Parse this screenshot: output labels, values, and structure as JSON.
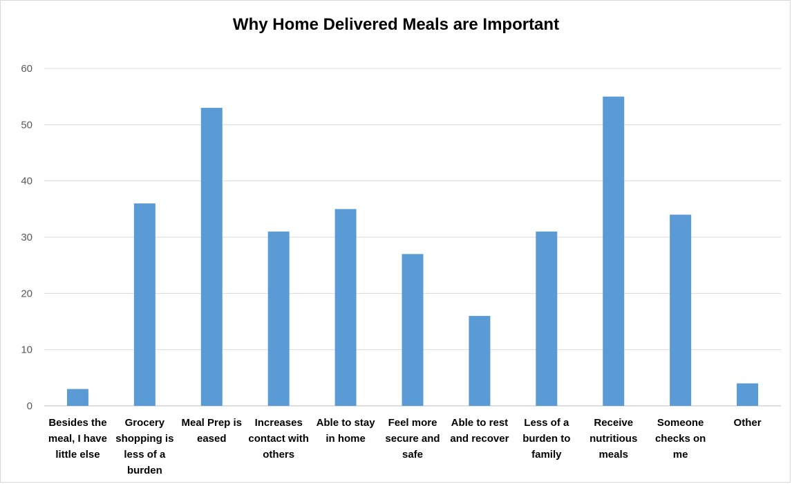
{
  "chart_data": {
    "type": "bar",
    "title": "Why Home Delivered Meals are Important",
    "xlabel": "",
    "ylabel": "",
    "ylim": [
      0,
      60
    ],
    "yticks": [
      0,
      10,
      20,
      30,
      40,
      50,
      60
    ],
    "grid": true,
    "legend": "none",
    "bar_color": "#5b9bd5",
    "categories": [
      [
        "Besides the",
        "meal, I have",
        "little else"
      ],
      [
        "Grocery",
        "shopping is",
        "less of a",
        "burden"
      ],
      [
        "Meal Prep is",
        "eased"
      ],
      [
        "Increases",
        "contact with",
        "others"
      ],
      [
        "Able to stay",
        "in home"
      ],
      [
        "Feel more",
        "secure and",
        "safe"
      ],
      [
        "Able to rest",
        "and recover"
      ],
      [
        "Less of a",
        "burden to",
        "family"
      ],
      [
        "Receive",
        "nutritious",
        "meals"
      ],
      [
        "Someone",
        "checks on",
        "me"
      ],
      [
        "Other"
      ]
    ],
    "values": [
      3,
      36,
      53,
      31,
      35,
      27,
      16,
      31,
      55,
      34,
      4
    ]
  }
}
